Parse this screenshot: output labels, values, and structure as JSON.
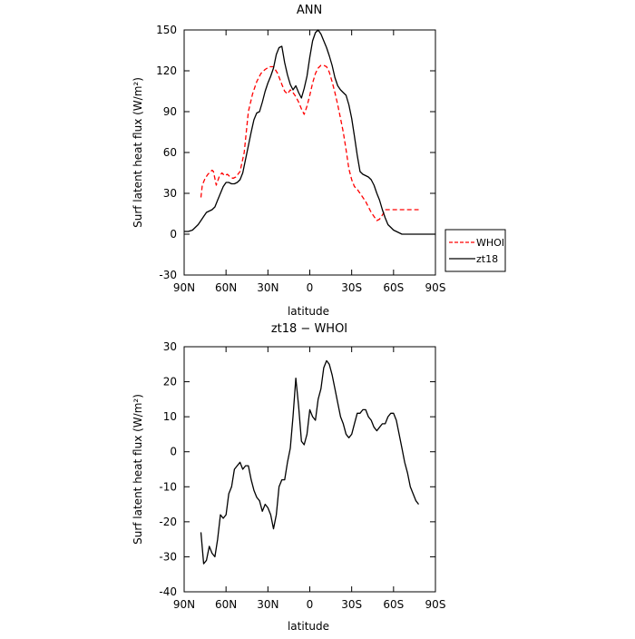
{
  "chart_data": [
    {
      "type": "line",
      "title": "ANN",
      "xlabel": "latitude",
      "ylabel": "Surf latent heat flux (W/m²)",
      "ylim": [
        -30,
        150
      ],
      "yticks": [
        -30,
        0,
        30,
        60,
        90,
        120,
        150
      ],
      "xlim": [
        90,
        -90
      ],
      "xticks": [
        90,
        60,
        30,
        0,
        -30,
        -60,
        -90
      ],
      "xticklabels": [
        "90N",
        "60N",
        "30N",
        "0",
        "30S",
        "60S",
        "90S"
      ],
      "legend": "outside-right",
      "series": [
        {
          "name": "WHOI",
          "color": "#ff0000",
          "style": "dashed",
          "x": [
            78,
            77,
            75,
            73,
            71,
            70,
            69,
            67,
            65,
            63,
            61,
            59,
            57,
            55,
            53,
            50,
            47,
            44,
            41,
            38,
            35,
            32,
            29,
            26,
            23,
            20,
            18,
            16,
            14,
            12,
            10,
            8,
            6,
            4,
            2,
            0,
            -2,
            -4,
            -6,
            -8,
            -10,
            -12,
            -14,
            -16,
            -18,
            -20,
            -22,
            -24,
            -26,
            -28,
            -30,
            -32,
            -34,
            -36,
            -38,
            -40,
            -42,
            -44,
            -46,
            -48,
            -50,
            -52,
            -54,
            -56,
            -58,
            -60,
            -62,
            -64,
            -66,
            -68,
            -70,
            -72,
            -74,
            -76,
            -78
          ],
          "y": [
            27,
            36,
            41,
            44,
            46,
            47,
            46,
            36,
            42,
            45,
            43,
            44,
            42,
            41,
            42,
            46,
            60,
            90,
            103,
            112,
            118,
            121,
            123,
            123,
            118,
            110,
            105,
            103,
            106,
            104,
            101,
            97,
            92,
            88,
            94,
            102,
            111,
            118,
            122,
            124,
            124,
            123,
            119,
            112,
            104,
            95,
            85,
            75,
            62,
            48,
            40,
            35,
            33,
            30,
            27,
            24,
            20,
            16,
            13,
            10,
            11,
            14,
            18,
            18,
            18,
            18,
            18,
            18,
            18,
            18,
            18,
            18,
            18,
            18,
            18
          ]
        },
        {
          "name": "zt18",
          "color": "#000000",
          "style": "solid",
          "x": [
            90,
            87,
            84,
            82,
            80,
            78,
            76,
            74,
            72,
            70,
            68,
            66,
            64,
            62,
            60,
            58,
            56,
            54,
            52,
            50,
            48,
            46,
            44,
            42,
            40,
            38,
            36,
            34,
            32,
            30,
            28,
            26,
            24,
            22,
            20,
            18,
            16,
            14,
            12,
            10,
            8,
            6,
            4,
            2,
            0,
            -2,
            -4,
            -6,
            -8,
            -10,
            -12,
            -14,
            -16,
            -18,
            -20,
            -22,
            -24,
            -26,
            -28,
            -30,
            -32,
            -34,
            -36,
            -38,
            -40,
            -42,
            -44,
            -46,
            -48,
            -50,
            -52,
            -54,
            -56,
            -58,
            -60,
            -62,
            -64,
            -66,
            -68,
            -70,
            -72,
            -74,
            -76,
            -78,
            -80,
            -82,
            -84,
            -86,
            -88,
            -90
          ],
          "y": [
            2,
            2,
            3,
            5,
            7,
            10,
            13,
            16,
            17,
            18,
            20,
            25,
            30,
            35,
            38,
            38,
            37,
            37,
            38,
            40,
            45,
            55,
            65,
            75,
            84,
            89,
            90,
            97,
            105,
            111,
            116,
            122,
            132,
            137,
            138,
            126,
            117,
            110,
            106,
            109,
            104,
            100,
            107,
            116,
            130,
            142,
            148,
            150,
            147,
            142,
            137,
            131,
            124,
            115,
            109,
            106,
            104,
            102,
            95,
            85,
            72,
            58,
            46,
            44,
            43,
            42,
            40,
            36,
            30,
            25,
            18,
            12,
            7,
            5,
            3,
            2,
            1,
            0,
            0,
            0,
            0,
            0,
            0,
            0,
            0,
            0,
            0,
            0,
            0,
            0
          ]
        }
      ]
    },
    {
      "type": "line",
      "title": "zt18 − WHOI",
      "xlabel": "latitude",
      "ylabel": "Surf latent heat flux (W/m²)",
      "ylim": [
        -40,
        30
      ],
      "yticks": [
        -40,
        -30,
        -20,
        -10,
        0,
        10,
        20,
        30
      ],
      "xlim": [
        90,
        -90
      ],
      "xticks": [
        90,
        60,
        30,
        0,
        -30,
        -60,
        -90
      ],
      "xticklabels": [
        "90N",
        "60N",
        "30N",
        "0",
        "30S",
        "60S",
        "90S"
      ],
      "series": [
        {
          "color": "#000000",
          "style": "solid",
          "x": [
            78,
            76,
            74,
            72,
            70,
            68,
            66,
            64,
            62,
            60,
            58,
            56,
            54,
            52,
            50,
            48,
            46,
            44,
            42,
            40,
            38,
            36,
            34,
            32,
            30,
            28,
            26,
            24,
            22,
            20,
            18,
            16,
            14,
            12,
            10,
            8,
            6,
            4,
            2,
            0,
            -2,
            -4,
            -6,
            -8,
            -10,
            -12,
            -14,
            -16,
            -18,
            -20,
            -22,
            -24,
            -26,
            -28,
            -30,
            -32,
            -34,
            -36,
            -38,
            -40,
            -42,
            -44,
            -46,
            -48,
            -50,
            -52,
            -54,
            -56,
            -58,
            -60,
            -62,
            -64,
            -66,
            -68,
            -70,
            -72,
            -74,
            -76,
            -78
          ],
          "y": [
            -23,
            -32,
            -31,
            -27,
            -29,
            -30,
            -25,
            -18,
            -19,
            -18,
            -12,
            -10,
            -5,
            -4,
            -3,
            -5,
            -4,
            -4,
            -8,
            -11,
            -13,
            -14,
            -17,
            -15,
            -16,
            -18,
            -22,
            -18,
            -10,
            -8,
            -8,
            -3,
            1,
            10,
            21,
            13,
            3,
            2,
            5,
            12,
            10,
            9,
            15,
            18,
            24,
            26,
            25,
            22,
            18,
            14,
            10,
            8,
            5,
            4,
            5,
            8,
            11,
            11,
            12,
            12,
            10,
            9,
            7,
            6,
            7,
            8,
            8,
            10,
            11,
            11,
            9,
            5,
            1,
            -3,
            -6,
            -10,
            -12,
            -14,
            -15
          ]
        }
      ]
    }
  ]
}
